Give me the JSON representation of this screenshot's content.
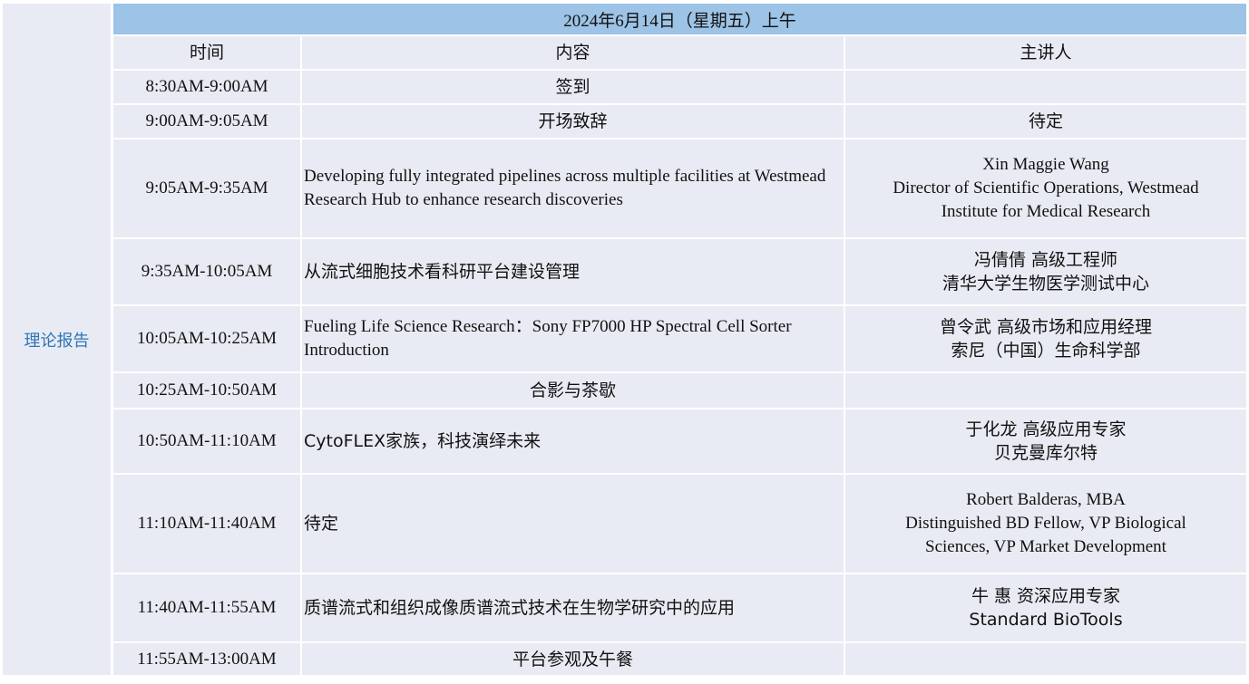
{
  "section_label": "理论报告",
  "title": "2024年6月14日（星期五）上午",
  "columns": [
    "时间",
    "内容",
    "主讲人"
  ],
  "rows": [
    {
      "time": "8:30AM-9:00AM",
      "content": "签到",
      "speaker": "",
      "align": "center"
    },
    {
      "time": "9:00AM-9:05AM",
      "content": "开场致辞",
      "speaker": "待定",
      "align": "center"
    },
    {
      "time": "9:05AM-9:35AM",
      "content": "Developing fully integrated pipelines across multiple facilities at Westmead Research Hub to enhance research discoveries",
      "speaker": "Xin Maggie Wang\nDirector of Scientific Operations, Westmead\nInstitute for Medical Research",
      "align": "left"
    },
    {
      "time": "9:35AM-10:05AM",
      "content": "从流式细胞技术看科研平台建设管理",
      "speaker": "冯倩倩 高级工程师\n清华大学生物医学测试中心",
      "align": "left"
    },
    {
      "time": "10:05AM-10:25AM",
      "content": "Fueling Life Science Research：Sony FP7000 HP Spectral Cell Sorter Introduction",
      "speaker": "曾令武 高级市场和应用经理\n索尼（中国）生命科学部",
      "align": "left"
    },
    {
      "time": "10:25AM-10:50AM",
      "content": "合影与茶歇",
      "speaker": "",
      "align": "center"
    },
    {
      "time": "10:50AM-11:10AM",
      "content": "CytoFLEX家族，科技演绎未来",
      "speaker": "于化龙 高级应用专家\n贝克曼库尔特",
      "align": "left"
    },
    {
      "time": "11:10AM-11:40AM",
      "content": "待定",
      "speaker": "Robert Balderas, MBA\nDistinguished BD Fellow, VP Biological\nSciences, VP Market Development",
      "align": "left"
    },
    {
      "time": "11:40AM-11:55AM",
      "content": "质谱流式和组织成像质谱流式技术在生物学研究中的应用",
      "speaker": "牛 惠  资深应用专家\nStandard BioTools",
      "align": "left"
    },
    {
      "time": "11:55AM-13:00AM",
      "content": "平台参观及午餐",
      "speaker": "",
      "align": "center"
    }
  ],
  "colors": {
    "header_bg": "#9dc3e6",
    "cell_bg": "#e9ebf4",
    "section_label": "#2e75b6"
  }
}
